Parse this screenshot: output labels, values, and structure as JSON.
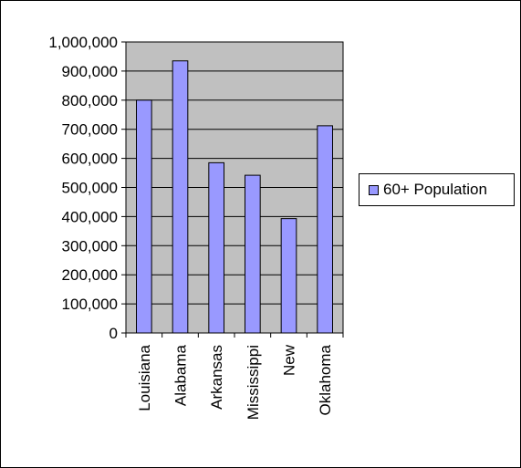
{
  "chart_data": {
    "type": "bar",
    "categories": [
      "Louisiana",
      "Alabama",
      "Arkansas",
      "Mississippi",
      "New",
      "Oklahoma"
    ],
    "series": [
      {
        "name": "60+ Population",
        "values": [
          800000,
          935000,
          585000,
          542000,
          393000,
          712000
        ]
      }
    ],
    "yticks": [
      "0",
      "100,000",
      "200,000",
      "300,000",
      "400,000",
      "500,000",
      "600,000",
      "700,000",
      "800,000",
      "900,000",
      "1,000,000"
    ],
    "ylim": [
      0,
      1000000
    ],
    "title": "",
    "xlabel": "",
    "ylabel": "",
    "grid": true,
    "legend": "right",
    "colors": {
      "bar": "#9999ff",
      "plot_bg": "#c0c0c0",
      "gridline": "#000000"
    }
  }
}
